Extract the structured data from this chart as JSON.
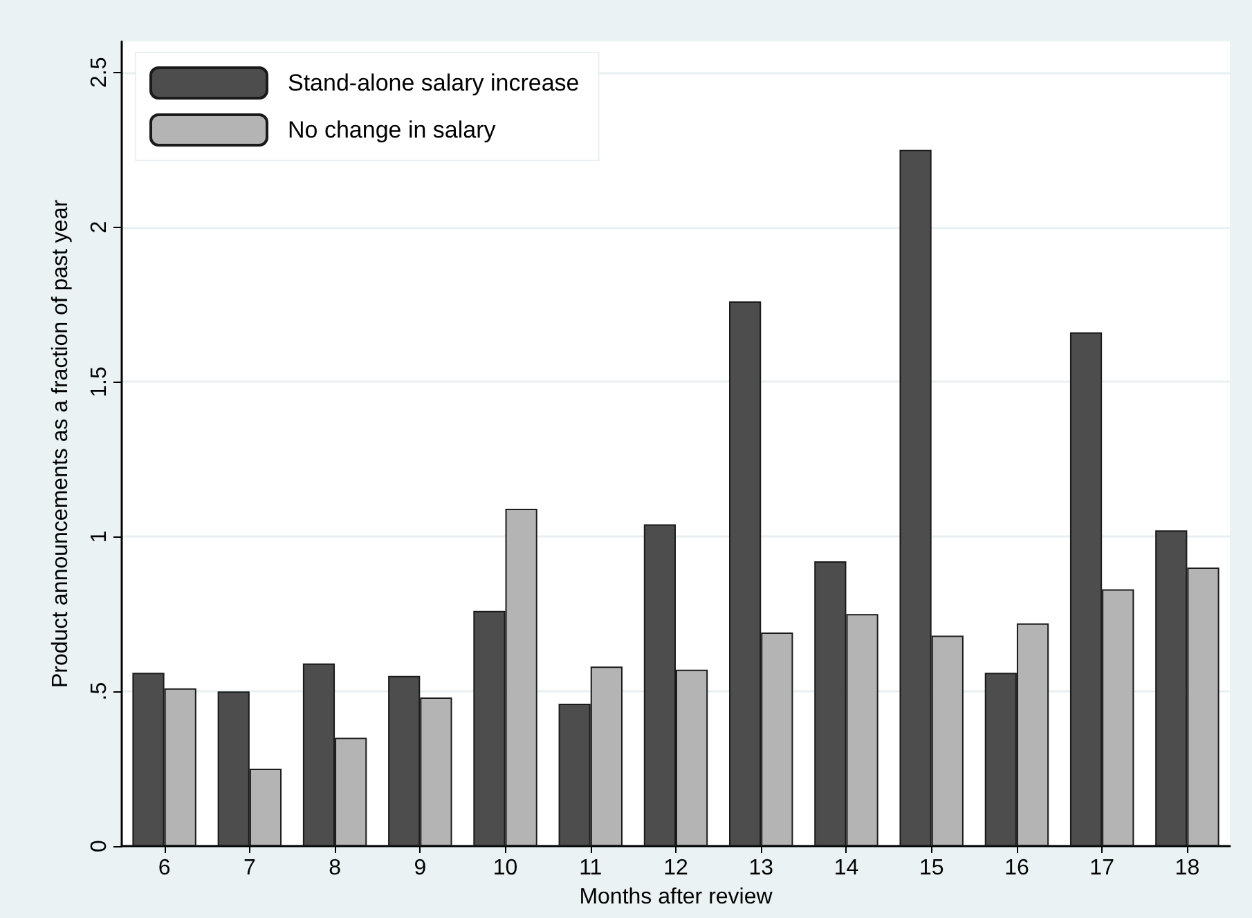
{
  "chart_data": {
    "type": "bar",
    "xlabel": "Months after review",
    "ylabel": "Product announcements as a fraction of past year",
    "categories": [
      "6",
      "7",
      "8",
      "9",
      "10",
      "11",
      "12",
      "13",
      "14",
      "15",
      "16",
      "17",
      "18"
    ],
    "series": [
      {
        "name": "Stand-alone salary increase",
        "color": "#4d4d4d",
        "values": [
          0.56,
          0.5,
          0.59,
          0.55,
          0.76,
          0.46,
          1.04,
          1.76,
          0.92,
          2.25,
          0.56,
          1.66,
          1.02
        ]
      },
      {
        "name": "No change in salary",
        "color": "#b4b4b4",
        "values": [
          0.51,
          0.25,
          0.35,
          0.48,
          1.09,
          0.58,
          0.57,
          0.69,
          0.75,
          0.68,
          0.72,
          0.83,
          0.9
        ]
      }
    ],
    "ylim": [
      0,
      2.6
    ],
    "yticks": [
      0,
      {
        "value": 0.5,
        "label": ".5"
      },
      1,
      1.5,
      2,
      2.5
    ],
    "grid": "y",
    "legend": "top left"
  }
}
